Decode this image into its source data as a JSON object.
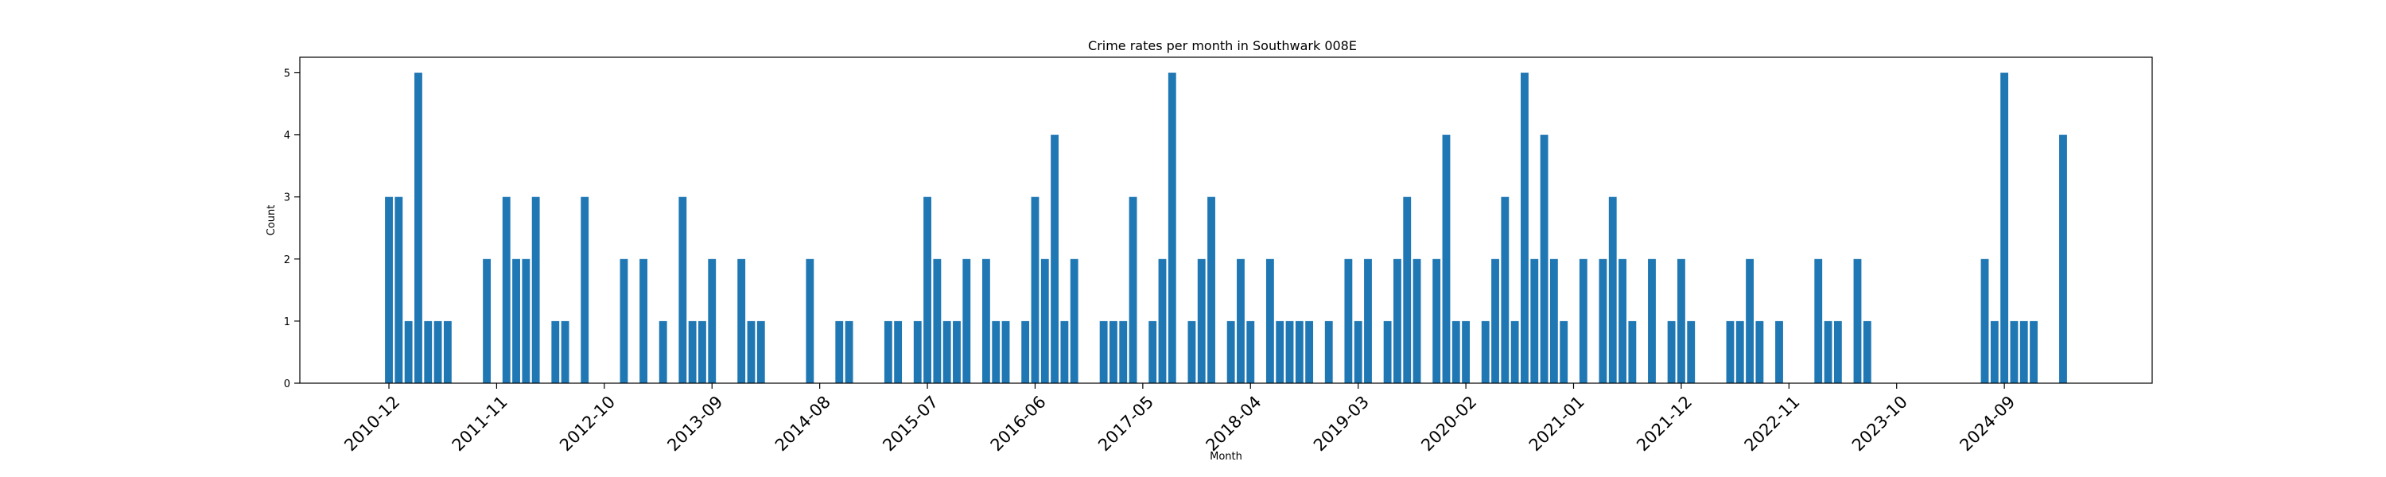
{
  "chart_data": {
    "type": "bar",
    "title": "Crime rates per month in Southwark 008E",
    "xlabel": "Month",
    "ylabel": "Count",
    "ylim": [
      0,
      5.25
    ],
    "yticks": [
      0,
      1,
      2,
      3,
      4,
      5
    ],
    "xticks": [
      "2010-12",
      "2011-11",
      "2012-10",
      "2013-09",
      "2014-08",
      "2015-07",
      "2016-06",
      "2017-05",
      "2018-04",
      "2019-03",
      "2020-02",
      "2021-01",
      "2021-12",
      "2022-11",
      "2023-10",
      "2024-09"
    ],
    "categories": [
      "2010-12",
      "2011-01",
      "2011-02",
      "2011-03",
      "2011-04",
      "2011-05",
      "2011-06",
      "2011-10",
      "2011-12",
      "2012-01",
      "2012-02",
      "2012-03",
      "2012-05",
      "2012-06",
      "2012-08",
      "2012-12",
      "2013-02",
      "2013-04",
      "2013-06",
      "2013-07",
      "2013-08",
      "2013-09",
      "2013-12",
      "2014-01",
      "2014-02",
      "2014-07",
      "2014-10",
      "2014-11",
      "2015-03",
      "2015-04",
      "2015-06",
      "2015-07",
      "2015-08",
      "2015-09",
      "2015-10",
      "2015-11",
      "2016-01",
      "2016-02",
      "2016-03",
      "2016-05",
      "2016-06",
      "2016-07",
      "2016-08",
      "2016-09",
      "2016-10",
      "2017-01",
      "2017-02",
      "2017-03",
      "2017-04",
      "2017-06",
      "2017-07",
      "2017-08",
      "2017-10",
      "2017-11",
      "2017-12",
      "2018-02",
      "2018-03",
      "2018-04",
      "2018-06",
      "2018-07",
      "2018-08",
      "2018-09",
      "2018-10",
      "2018-12",
      "2019-02",
      "2019-03",
      "2019-04",
      "2019-06",
      "2019-07",
      "2019-08",
      "2019-09",
      "2019-11",
      "2019-12",
      "2020-01",
      "2020-02",
      "2020-04",
      "2020-05",
      "2020-06",
      "2020-07",
      "2020-08",
      "2020-09",
      "2020-10",
      "2020-11",
      "2020-12",
      "2021-02",
      "2021-04",
      "2021-05",
      "2021-06",
      "2021-07",
      "2021-09",
      "2021-11",
      "2021-12",
      "2022-01",
      "2022-05",
      "2022-06",
      "2022-07",
      "2022-08",
      "2022-10",
      "2023-02",
      "2023-03",
      "2023-04",
      "2023-06",
      "2023-07",
      "2024-07",
      "2024-08",
      "2024-09",
      "2024-10",
      "2024-11",
      "2024-12",
      "2025-03"
    ],
    "values": [
      3,
      3,
      1,
      5,
      1,
      1,
      1,
      2,
      3,
      2,
      2,
      3,
      1,
      1,
      3,
      2,
      2,
      1,
      3,
      1,
      1,
      2,
      2,
      1,
      1,
      2,
      1,
      1,
      1,
      1,
      1,
      3,
      2,
      1,
      1,
      2,
      2,
      1,
      1,
      1,
      3,
      2,
      4,
      1,
      2,
      1,
      1,
      1,
      3,
      1,
      2,
      5,
      1,
      2,
      3,
      1,
      2,
      1,
      2,
      1,
      1,
      1,
      1,
      1,
      2,
      1,
      2,
      1,
      2,
      3,
      2,
      2,
      4,
      1,
      1,
      1,
      2,
      3,
      1,
      5,
      2,
      4,
      2,
      1,
      2,
      2,
      3,
      2,
      1,
      2,
      1,
      2,
      1,
      1,
      1,
      2,
      1,
      1,
      2,
      1,
      1,
      2,
      1,
      2,
      1,
      5,
      1,
      1,
      1,
      4
    ],
    "bar_color": "#1f77b4",
    "grid": false
  }
}
